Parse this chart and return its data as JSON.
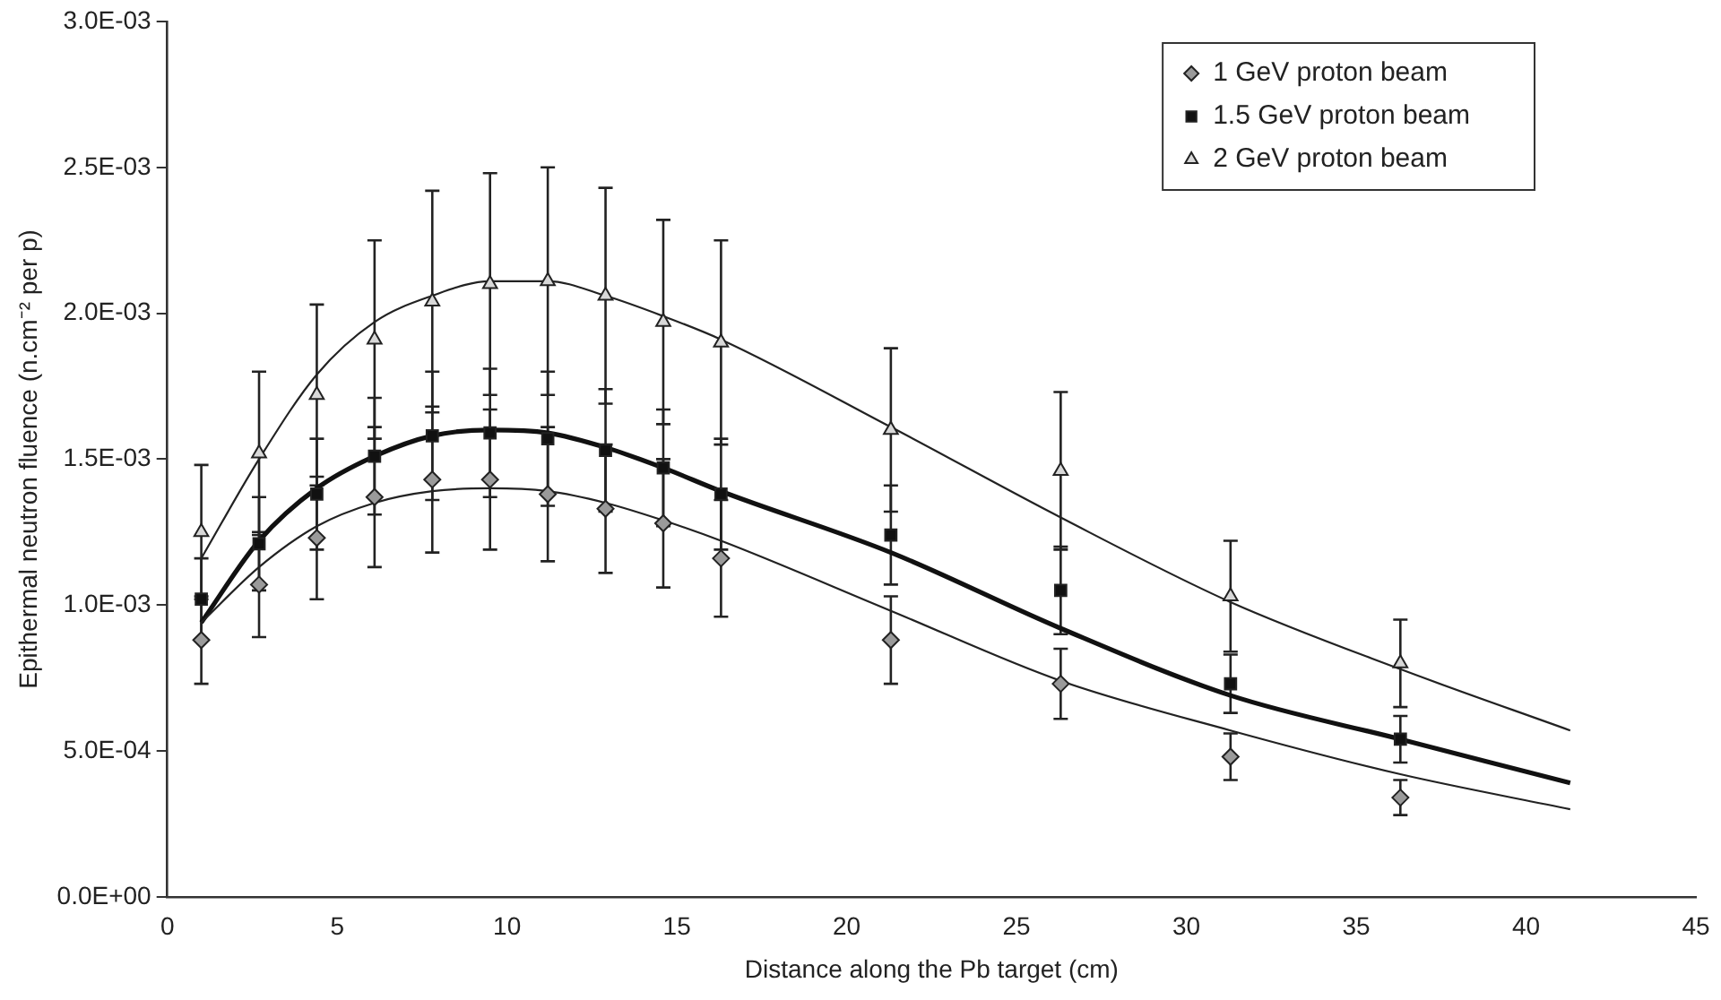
{
  "chart_data": {
    "type": "scatter",
    "xlabel": "Distance along the Pb target (cm)",
    "ylabel": "Epithermal neutron fluence (n.cm⁻² per p)",
    "xlim": [
      0,
      45
    ],
    "xticks": [
      0,
      5,
      10,
      15,
      20,
      25,
      30,
      35,
      40,
      45
    ],
    "ylim": [
      0,
      0.003
    ],
    "yticks": [
      {
        "value": 0,
        "label": "0.0E+00"
      },
      {
        "value": 0.0005,
        "label": "5.0E-04"
      },
      {
        "value": 0.001,
        "label": "1.0E-03"
      },
      {
        "value": 0.0015,
        "label": "1.5E-03"
      },
      {
        "value": 0.002,
        "label": "2.0E-03"
      },
      {
        "value": 0.0025,
        "label": "2.5E-03"
      },
      {
        "value": 0.003,
        "label": "3.0E-03"
      }
    ],
    "grid": false,
    "legend": "top right",
    "series": [
      {
        "name": "1 GeV proton beam",
        "marker": "diamond",
        "color": "#9a9a9a",
        "x": [
          1,
          2.7,
          4.4,
          6.1,
          7.8,
          9.5,
          11.2,
          12.9,
          14.6,
          16.3,
          21.3,
          26.3,
          31.3,
          36.3
        ],
        "values": [
          0.00088,
          0.00107,
          0.00123,
          0.00137,
          0.00143,
          0.00143,
          0.00138,
          0.00133,
          0.00128,
          0.00116,
          0.00088,
          0.00073,
          0.00048,
          0.00034
        ],
        "errors": [
          0.00015,
          0.00018,
          0.00021,
          0.00024,
          0.00025,
          0.00024,
          0.00023,
          0.00022,
          0.00022,
          0.0002,
          0.00015,
          0.00012,
          8e-05,
          6e-05
        ]
      },
      {
        "name": "1.5 GeV proton beam",
        "marker": "square",
        "color": "#111111",
        "x": [
          1,
          2.7,
          4.4,
          6.1,
          7.8,
          9.5,
          11.2,
          12.9,
          14.6,
          16.3,
          21.3,
          26.3,
          31.3,
          36.3
        ],
        "values": [
          0.00102,
          0.00121,
          0.00138,
          0.00151,
          0.00158,
          0.00159,
          0.00157,
          0.00153,
          0.00147,
          0.00138,
          0.00124,
          0.00105,
          0.00073,
          0.00054
        ],
        "errors": [
          0.00014,
          0.00016,
          0.00019,
          0.0002,
          0.00022,
          0.00022,
          0.00023,
          0.00021,
          0.0002,
          0.00019,
          0.00017,
          0.00015,
          0.0001,
          8e-05
        ]
      },
      {
        "name": "2 GeV proton beam",
        "marker": "triangle",
        "color": "#d8d8d8",
        "x": [
          1,
          2.7,
          4.4,
          6.1,
          7.8,
          9.5,
          11.2,
          12.9,
          14.6,
          16.3,
          21.3,
          26.3,
          31.3,
          36.3
        ],
        "values": [
          0.00125,
          0.00152,
          0.00172,
          0.00191,
          0.00204,
          0.0021,
          0.00211,
          0.00206,
          0.00197,
          0.0019,
          0.0016,
          0.00146,
          0.00103,
          0.0008
        ],
        "errors": [
          0.00023,
          0.00028,
          0.00031,
          0.00034,
          0.00038,
          0.00038,
          0.00039,
          0.00037,
          0.00035,
          0.00035,
          0.00028,
          0.00027,
          0.00019,
          0.00015
        ]
      },
      {
        "type": "line",
        "marker": "none",
        "color": "#222222",
        "x": [
          1,
          2.7,
          4.4,
          6.1,
          7.8,
          9.5,
          11.2,
          12.9,
          14.6,
          16.3,
          21.3,
          26.3,
          31.3,
          36.3,
          41.3
        ],
        "values": [
          0.00094,
          0.00113,
          0.00127,
          0.00135,
          0.00139,
          0.0014,
          0.00139,
          0.00135,
          0.00129,
          0.00122,
          0.00098,
          0.00074,
          0.00057,
          0.00042,
          0.0003
        ]
      },
      {
        "type": "line",
        "marker": "none",
        "color": "#111111",
        "x": [
          1,
          2.7,
          4.4,
          6.1,
          7.8,
          9.5,
          11.2,
          12.9,
          14.6,
          16.3,
          21.3,
          26.3,
          31.3,
          36.3,
          41.3
        ],
        "values": [
          0.00094,
          0.00122,
          0.0014,
          0.00151,
          0.00158,
          0.0016,
          0.00159,
          0.00154,
          0.00147,
          0.00139,
          0.00118,
          0.00092,
          0.00069,
          0.00054,
          0.00039
        ]
      },
      {
        "type": "line",
        "marker": "none",
        "color": "#222222",
        "x": [
          1,
          2.7,
          4.4,
          6.1,
          7.8,
          9.5,
          11.2,
          12.9,
          14.6,
          16.3,
          21.3,
          26.3,
          31.3,
          36.3,
          41.3
        ],
        "values": [
          0.00116,
          0.0015,
          0.00179,
          0.00197,
          0.00206,
          0.00211,
          0.00211,
          0.00206,
          0.00199,
          0.00191,
          0.00161,
          0.0013,
          0.00101,
          0.00078,
          0.00057
        ]
      }
    ]
  }
}
